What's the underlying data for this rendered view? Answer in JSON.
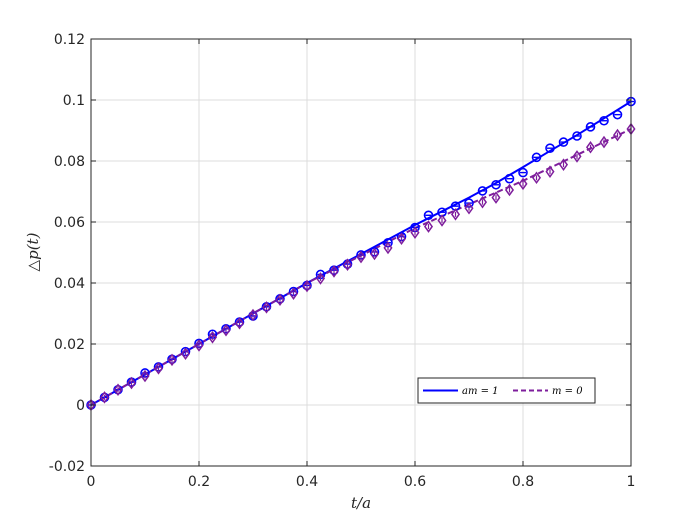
{
  "chart_data": {
    "type": "line",
    "title": "",
    "xlabel": "t/a",
    "ylabel": "△p(t)",
    "xlim": [
      0,
      1
    ],
    "ylim": [
      -0.02,
      0.12
    ],
    "x_ticks": [
      0,
      0.2,
      0.4,
      0.6,
      0.8,
      1
    ],
    "x_tick_labels": [
      "0",
      "0.2",
      "0.4",
      "0.6",
      "0.8",
      "1"
    ],
    "y_ticks": [
      -0.02,
      0,
      0.02,
      0.04,
      0.06,
      0.08,
      0.1,
      0.12
    ],
    "y_tick_labels": [
      "-0.02",
      "0",
      "0.02",
      "0.04",
      "0.06",
      "0.08",
      "0.1",
      "0.12"
    ],
    "grid": true,
    "legend_position": "bottom-right",
    "series": [
      {
        "name": "am = 1",
        "color": "#0000ff",
        "line_style": "solid",
        "marker": "circle",
        "line": {
          "x": [
            0,
            0.2,
            0.4,
            0.6,
            0.65,
            0.7,
            0.75,
            0.8,
            0.85,
            0.9,
            0.95,
            1.0
          ],
          "y": [
            0,
            0.02,
            0.04,
            0.059,
            0.0635,
            0.068,
            0.0728,
            0.078,
            0.0833,
            0.0885,
            0.094,
            0.0995
          ]
        },
        "markers": {
          "x": [
            0,
            0.025,
            0.05,
            0.075,
            0.1,
            0.125,
            0.15,
            0.175,
            0.2,
            0.225,
            0.25,
            0.275,
            0.3,
            0.325,
            0.35,
            0.375,
            0.4,
            0.425,
            0.45,
            0.475,
            0.5,
            0.525,
            0.55,
            0.575,
            0.6,
            0.625,
            0.65,
            0.675,
            0.7,
            0.725,
            0.75,
            0.775,
            0.8,
            0.825,
            0.85,
            0.875,
            0.9,
            0.925,
            0.95,
            0.975,
            1.0
          ],
          "y": [
            0,
            0.0025,
            0.005,
            0.0075,
            0.0105,
            0.0125,
            0.015,
            0.0175,
            0.0202,
            0.0232,
            0.025,
            0.0272,
            0.0292,
            0.0322,
            0.0348,
            0.0372,
            0.0392,
            0.0428,
            0.0442,
            0.0462,
            0.0492,
            0.0502,
            0.0532,
            0.0552,
            0.0582,
            0.0622,
            0.0632,
            0.0652,
            0.0662,
            0.0702,
            0.0722,
            0.0742,
            0.0762,
            0.0812,
            0.0842,
            0.0862,
            0.0882,
            0.0912,
            0.0932,
            0.0952,
            0.0995
          ]
        }
      },
      {
        "name": "m = 0",
        "color": "#7e1e9c",
        "line_style": "dashed",
        "marker": "diamond",
        "line": {
          "x": [
            0,
            0.2,
            0.4,
            0.6,
            0.7,
            0.8,
            0.9,
            1.0
          ],
          "y": [
            0,
            0.02,
            0.04,
            0.058,
            0.0658,
            0.0735,
            0.082,
            0.0905
          ]
        },
        "markers": {
          "x": [
            0,
            0.025,
            0.05,
            0.075,
            0.1,
            0.125,
            0.15,
            0.175,
            0.2,
            0.225,
            0.25,
            0.275,
            0.3,
            0.325,
            0.35,
            0.375,
            0.4,
            0.425,
            0.45,
            0.475,
            0.5,
            0.525,
            0.55,
            0.575,
            0.6,
            0.625,
            0.65,
            0.675,
            0.7,
            0.725,
            0.75,
            0.775,
            0.8,
            0.825,
            0.85,
            0.875,
            0.9,
            0.925,
            0.95,
            0.975,
            1.0
          ],
          "y": [
            0,
            0.0025,
            0.005,
            0.0072,
            0.0095,
            0.012,
            0.0148,
            0.0168,
            0.0195,
            0.0222,
            0.0245,
            0.0268,
            0.0295,
            0.032,
            0.0345,
            0.0365,
            0.039,
            0.0415,
            0.0438,
            0.046,
            0.0485,
            0.0495,
            0.0515,
            0.0545,
            0.0565,
            0.0585,
            0.0605,
            0.0625,
            0.0645,
            0.0665,
            0.068,
            0.0705,
            0.0725,
            0.0745,
            0.0765,
            0.0788,
            0.0815,
            0.0845,
            0.0862,
            0.0885,
            0.0905
          ]
        }
      }
    ]
  }
}
